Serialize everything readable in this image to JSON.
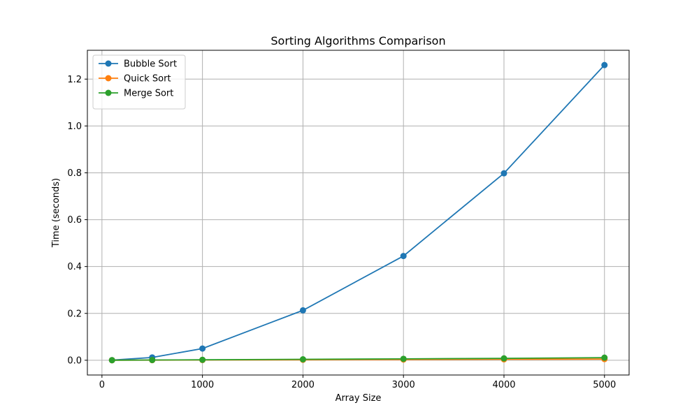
{
  "chart_data": {
    "type": "line",
    "title": "Sorting Algorithms Comparison",
    "xlabel": "Array Size",
    "ylabel": "Time (seconds)",
    "x": [
      100,
      500,
      1000,
      2000,
      3000,
      4000,
      5000
    ],
    "xlim": [
      -145,
      5245
    ],
    "ylim": [
      -0.063,
      1.323
    ],
    "xticks": [
      0,
      1000,
      2000,
      3000,
      4000,
      5000
    ],
    "xtick_labels": [
      "0",
      "1000",
      "2000",
      "3000",
      "4000",
      "5000"
    ],
    "yticks": [
      0.0,
      0.2,
      0.4,
      0.6,
      0.8,
      1.0,
      1.2
    ],
    "ytick_labels": [
      "0.0",
      "0.2",
      "0.4",
      "0.6",
      "0.8",
      "1.0",
      "1.2"
    ],
    "grid": true,
    "legend_position": "top-left",
    "series": [
      {
        "name": "Bubble Sort",
        "color": "#1f77b4",
        "marker": "circle",
        "values": [
          0.0005,
          0.012,
          0.05,
          0.213,
          0.445,
          0.798,
          1.26
        ]
      },
      {
        "name": "Quick Sort",
        "color": "#ff7f0e",
        "marker": "circle",
        "values": [
          0.0001,
          0.0005,
          0.001,
          0.002,
          0.003,
          0.004,
          0.005
        ]
      },
      {
        "name": "Merge Sort",
        "color": "#2ca02c",
        "marker": "circle",
        "values": [
          0.0002,
          0.001,
          0.002,
          0.004,
          0.006,
          0.008,
          0.011
        ]
      }
    ]
  }
}
